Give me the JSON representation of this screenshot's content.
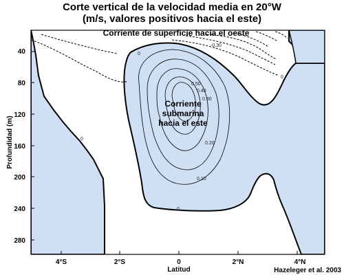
{
  "chart_data": {
    "type": "contour",
    "title": "Corte vertical de la velocidad media en 20°W",
    "subtitle": "(m/s, valores positivos hacia el este)",
    "xlabel": "Latitud",
    "ylabel": "Profundidad (m)",
    "x_ticks": [
      "4°S",
      "2°S",
      "0",
      "2°N",
      "4°N"
    ],
    "y_ticks": [
      "40",
      "80",
      "120",
      "160",
      "200",
      "240",
      "280"
    ],
    "xlim": [
      -5,
      5
    ],
    "ylim": [
      300,
      10
    ],
    "annotations": {
      "surface_current": "Corriente de superficie hacia el oeste",
      "undercurrent": "Corriente submarina hacia el este"
    },
    "undercurrent_lines": [
      "Corriente",
      "submarina",
      "hacia el este"
    ],
    "contour_labels": [
      "0",
      "0",
      "0",
      "0",
      "-0.30",
      "0.10",
      "0.20",
      "0.40",
      "0.50",
      "0.30"
    ],
    "credit": "Hazeleger et al. 2003",
    "colors": {
      "eastward_fill": "#cfe0f4",
      "background": "#ffffff",
      "line": "#000000"
    }
  }
}
